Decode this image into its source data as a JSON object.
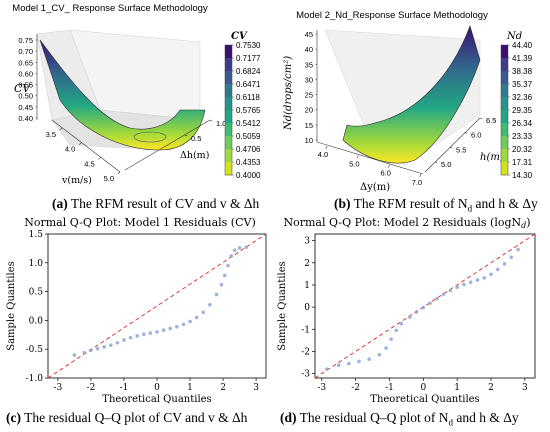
{
  "chart_data": [
    {
      "type": "surface3d",
      "title": "Model 1_CV_ Response Surface Methodology",
      "zlabel": "CV",
      "xlabel": "v(m/s)",
      "ylabel": "Δh(m)",
      "x_ticks": [
        "3.5",
        "4.0",
        "4.5",
        "5.0"
      ],
      "y_ticks": [
        "0.5",
        "1.0"
      ],
      "z_ticks": [
        "0.40",
        "0.45",
        "0.50",
        "0.55",
        "0.60",
        "0.65",
        "0.70",
        "0.75"
      ],
      "z_range": [
        0.38,
        0.76
      ],
      "colorbar": {
        "label": "CV",
        "levels": [
          "0.7530",
          "0.7177",
          "0.6824",
          "0.6471",
          "0.6118",
          "0.5765",
          "0.5412",
          "0.5059",
          "0.4706",
          "0.4353",
          "0.4000"
        ],
        "colors": [
          "#3b0f70",
          "#3f3a8c",
          "#3a5b91",
          "#2f7b8e",
          "#25948b",
          "#21a685",
          "#3cbc74",
          "#6ccd5a",
          "#a2d93a",
          "#d2e21b",
          "#fde725"
        ]
      }
    },
    {
      "type": "surface3d",
      "title": "Model 2_Nd_Response Surface Methodology",
      "zlabel": "Nd(drops/cm²)",
      "xlabel": "Δy(m)",
      "ylabel": "h(m)",
      "x_ticks": [
        "4.0",
        "5.0",
        "6.0",
        "7.0"
      ],
      "x_minor_ticks": [
        "4.5",
        "5.5",
        "6.5"
      ],
      "y_ticks": [
        "5.0",
        "5.5",
        "6.0",
        "6.5"
      ],
      "z_ticks": [
        "10",
        "15",
        "20",
        "25",
        "30",
        "35",
        "40",
        "45"
      ],
      "z_range": [
        10,
        47
      ],
      "colorbar": {
        "label": "Nd",
        "levels": [
          "44.40",
          "41.39",
          "38.38",
          "35.37",
          "32.36",
          "29.35",
          "26.34",
          "23.33",
          "20.32",
          "17.31",
          "14.30"
        ],
        "colors": [
          "#3b0f70",
          "#3f3a8c",
          "#3a5b91",
          "#2f7b8e",
          "#25948b",
          "#21a685",
          "#3cbc74",
          "#6ccd5a",
          "#a2d93a",
          "#d2e21b",
          "#fde725"
        ]
      }
    },
    {
      "type": "scatter",
      "title": "Normal Q-Q Plot: Model 1 Residuals (CV)",
      "xlabel": "Theoretical Quantiles",
      "ylabel": "Sample Quantiles",
      "xlim": [
        -3.3,
        3.3
      ],
      "ylim": [
        -1.0,
        1.5
      ],
      "x_ticks": [
        -3,
        -2,
        -1,
        0,
        1,
        2,
        3
      ],
      "y_ticks": [
        -1.0,
        -0.5,
        0.0,
        0.5,
        1.0,
        1.5
      ],
      "reference_line": {
        "x": [
          -3.3,
          3.3
        ],
        "y": [
          -1.0,
          1.5
        ]
      },
      "points": [
        [
          -2.5,
          -0.6
        ],
        [
          -2.2,
          -0.56
        ],
        [
          -2.0,
          -0.52
        ],
        [
          -1.8,
          -0.49
        ],
        [
          -1.6,
          -0.46
        ],
        [
          -1.4,
          -0.43
        ],
        [
          -1.2,
          -0.39
        ],
        [
          -1.0,
          -0.34
        ],
        [
          -0.8,
          -0.3
        ],
        [
          -0.6,
          -0.27
        ],
        [
          -0.4,
          -0.24
        ],
        [
          -0.2,
          -0.22
        ],
        [
          0.0,
          -0.2
        ],
        [
          0.2,
          -0.17
        ],
        [
          0.4,
          -0.14
        ],
        [
          0.6,
          -0.11
        ],
        [
          0.8,
          -0.07
        ],
        [
          1.0,
          -0.02
        ],
        [
          1.2,
          0.05
        ],
        [
          1.4,
          0.14
        ],
        [
          1.6,
          0.27
        ],
        [
          1.8,
          0.45
        ],
        [
          1.95,
          0.62
        ],
        [
          2.05,
          0.78
        ],
        [
          2.15,
          0.95
        ],
        [
          2.25,
          1.12
        ],
        [
          2.35,
          1.22
        ],
        [
          2.5,
          1.26
        ],
        [
          2.7,
          1.27
        ]
      ]
    },
    {
      "type": "scatter",
      "title": "Normal Q-Q Plot: Model 2 Residuals (logN",
      "title_sub": "d",
      "xlabel": "Theoretical Quantiles",
      "ylabel": "Sample Quantiles",
      "xlim": [
        -3.2,
        3.3
      ],
      "ylim": [
        -3.2,
        3.3
      ],
      "x_ticks": [
        -3,
        -2,
        -1,
        0,
        1,
        2,
        3
      ],
      "y_ticks": [
        -3,
        -2,
        -1,
        0,
        1,
        2,
        3
      ],
      "reference_line": {
        "x": [
          -3.2,
          3.3
        ],
        "y": [
          -3.2,
          3.3
        ]
      },
      "points": [
        [
          -2.85,
          -2.8
        ],
        [
          -2.5,
          -2.62
        ],
        [
          -2.2,
          -2.55
        ],
        [
          -1.9,
          -2.45
        ],
        [
          -1.6,
          -2.35
        ],
        [
          -1.3,
          -2.15
        ],
        [
          -1.1,
          -1.85
        ],
        [
          -0.95,
          -1.45
        ],
        [
          -0.8,
          -1.05
        ],
        [
          -0.65,
          -0.75
        ],
        [
          -0.4,
          -0.45
        ],
        [
          -0.2,
          -0.22
        ],
        [
          0.0,
          -0.02
        ],
        [
          0.2,
          0.18
        ],
        [
          0.4,
          0.38
        ],
        [
          0.6,
          0.58
        ],
        [
          0.8,
          0.75
        ],
        [
          1.0,
          0.9
        ],
        [
          1.2,
          1.02
        ],
        [
          1.4,
          1.12
        ],
        [
          1.6,
          1.22
        ],
        [
          1.8,
          1.32
        ],
        [
          2.0,
          1.48
        ],
        [
          2.2,
          1.7
        ],
        [
          2.4,
          1.95
        ],
        [
          2.6,
          2.25
        ],
        [
          2.8,
          2.6
        ]
      ]
    }
  ],
  "captions": [
    {
      "letter": "(a)",
      "text": " The RFM result of CV and v & Δh"
    },
    {
      "letter": "(b)",
      "text": " The RFM result of N",
      "sub": "d",
      "tail": " and h & Δy"
    },
    {
      "letter": "(c)",
      "text": " The residual Q–Q plot of CV and v & Δh"
    },
    {
      "letter": "(d)",
      "text": " The residual Q–Q plot of N",
      "sub": "d",
      "tail": " and h & Δy"
    }
  ]
}
